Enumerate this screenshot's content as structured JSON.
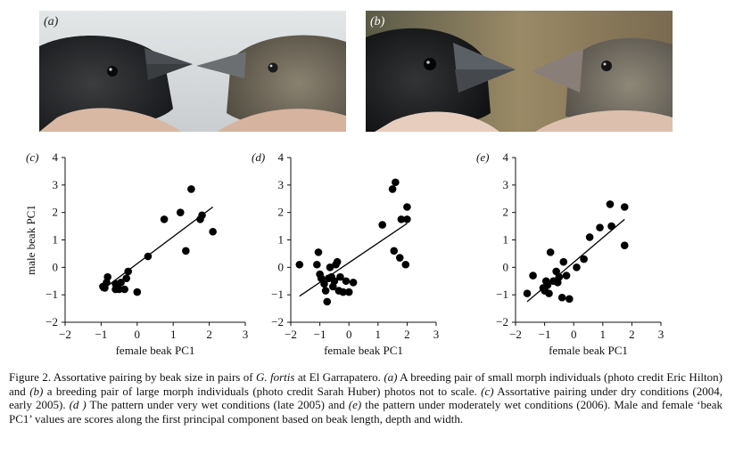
{
  "photos": [
    {
      "panel": "(a)"
    },
    {
      "panel": "(b)"
    }
  ],
  "chart_data": [
    {
      "type": "scatter",
      "panel": "(c)",
      "title": "",
      "xlabel": "female beak PC1",
      "ylabel": "male beak PC1",
      "xlim": [
        -2,
        3
      ],
      "ylim": [
        -2,
        4
      ],
      "xticks": [
        -2,
        -1,
        0,
        1,
        2,
        3
      ],
      "yticks": [
        -2,
        -1,
        0,
        1,
        2,
        3,
        4
      ],
      "points": [
        [
          -0.95,
          -0.7
        ],
        [
          -0.9,
          -0.75
        ],
        [
          -0.85,
          -0.55
        ],
        [
          -0.82,
          -0.35
        ],
        [
          -0.6,
          -0.6
        ],
        [
          -0.6,
          -0.8
        ],
        [
          -0.5,
          -0.8
        ],
        [
          -0.45,
          -0.55
        ],
        [
          -0.35,
          -0.8
        ],
        [
          -0.3,
          -0.4
        ],
        [
          -0.25,
          -0.15
        ],
        [
          0.0,
          -0.9
        ],
        [
          0.3,
          0.4
        ],
        [
          0.75,
          1.75
        ],
        [
          1.2,
          2.0
        ],
        [
          1.35,
          0.6
        ],
        [
          1.5,
          2.85
        ],
        [
          1.75,
          1.75
        ],
        [
          1.8,
          1.9
        ],
        [
          2.1,
          1.3
        ]
      ],
      "fit_line": [
        [
          -1.0,
          -0.85
        ],
        [
          2.1,
          2.2
        ]
      ],
      "grid": false
    },
    {
      "type": "scatter",
      "panel": "(d)",
      "title": "",
      "xlabel": "female beak PC1",
      "ylabel": "",
      "xlim": [
        -2,
        3
      ],
      "ylim": [
        -2,
        4
      ],
      "xticks": [
        -2,
        -1,
        0,
        1,
        2,
        3
      ],
      "yticks": [
        -2,
        -1,
        0,
        1,
        2,
        3,
        4
      ],
      "points": [
        [
          -1.7,
          0.1
        ],
        [
          -1.1,
          0.1
        ],
        [
          -1.05,
          0.55
        ],
        [
          -1.0,
          -0.25
        ],
        [
          -0.95,
          -0.4
        ],
        [
          -0.85,
          -0.6
        ],
        [
          -0.8,
          -0.85
        ],
        [
          -0.75,
          -1.25
        ],
        [
          -0.7,
          -0.4
        ],
        [
          -0.65,
          0.0
        ],
        [
          -0.6,
          -0.35
        ],
        [
          -0.55,
          -0.7
        ],
        [
          -0.5,
          -0.5
        ],
        [
          -0.45,
          0.1
        ],
        [
          -0.4,
          0.2
        ],
        [
          -0.35,
          -0.85
        ],
        [
          -0.3,
          -0.35
        ],
        [
          -0.2,
          -0.9
        ],
        [
          -0.1,
          -0.5
        ],
        [
          0.0,
          -0.9
        ],
        [
          0.15,
          -0.55
        ],
        [
          1.15,
          1.55
        ],
        [
          1.5,
          2.85
        ],
        [
          1.6,
          3.1
        ],
        [
          1.55,
          0.6
        ],
        [
          1.75,
          0.35
        ],
        [
          1.8,
          1.75
        ],
        [
          1.95,
          0.1
        ],
        [
          2.0,
          1.75
        ],
        [
          2.0,
          2.2
        ]
      ],
      "fit_line": [
        [
          -1.7,
          -1.05
        ],
        [
          2.0,
          1.6
        ]
      ],
      "grid": false
    },
    {
      "type": "scatter",
      "panel": "(e)",
      "title": "",
      "xlabel": "female beak PC1",
      "ylabel": "",
      "xlim": [
        -2,
        3
      ],
      "ylim": [
        -2,
        4
      ],
      "xticks": [
        -2,
        -1,
        0,
        1,
        2,
        3
      ],
      "yticks": [
        -2,
        -1,
        0,
        1,
        2,
        3,
        4
      ],
      "points": [
        [
          -1.6,
          -0.95
        ],
        [
          -1.4,
          -0.3
        ],
        [
          -1.05,
          -0.75
        ],
        [
          -1.0,
          -0.85
        ],
        [
          -0.95,
          -0.5
        ],
        [
          -0.9,
          -0.65
        ],
        [
          -0.85,
          -0.95
        ],
        [
          -0.8,
          0.55
        ],
        [
          -0.7,
          -0.5
        ],
        [
          -0.6,
          -0.15
        ],
        [
          -0.55,
          -0.55
        ],
        [
          -0.5,
          -0.35
        ],
        [
          -0.4,
          -1.1
        ],
        [
          -0.35,
          0.2
        ],
        [
          -0.25,
          -0.3
        ],
        [
          -0.15,
          -1.15
        ],
        [
          0.1,
          0.0
        ],
        [
          0.35,
          0.3
        ],
        [
          0.55,
          1.1
        ],
        [
          0.9,
          1.45
        ],
        [
          1.25,
          2.3
        ],
        [
          1.3,
          1.5
        ],
        [
          1.75,
          2.2
        ],
        [
          1.75,
          0.8
        ]
      ],
      "fit_line": [
        [
          -1.6,
          -1.25
        ],
        [
          1.75,
          1.75
        ]
      ],
      "grid": false
    }
  ],
  "caption": {
    "lead": "Figure 2. Assortative pairing by beak size in pairs of ",
    "species": "G. fortis",
    "p1": " at El Garrapatero. ",
    "a": "(a)",
    "p2": " A breeding pair of small morph individuals (photo credit Eric Hilton) and ",
    "b": "(b)",
    "p3": " a breeding pair of large morph individuals (photo credit Sarah Huber) photos not to scale. ",
    "c": "(c)",
    "p4": " Assortative pairing under dry conditions (2004, early 2005). ",
    "d": "(d )",
    "p5": " The pattern under very wet conditions (late 2005) and ",
    "e": "(e)",
    "p6": " the pattern under moderately wet conditions (2006). Male and female ‘beak PC1’ values are scores along the first principal component based on beak length, depth and width."
  },
  "colors": {
    "ink": "#111111",
    "points": "#000000",
    "photo_a_bg": "#d8dcde",
    "photo_b_bg": "#7a6a4a"
  }
}
